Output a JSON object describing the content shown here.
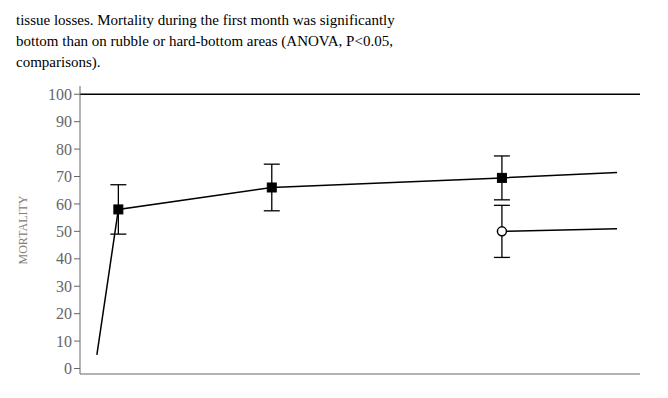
{
  "chart_data": {
    "type": "line",
    "annotations": [
      "tissue losses. Mortality during the first month was significantly",
      "bottom than on rubble or hard-bottom areas (ANOVA, P<0.05,",
      "comparisons)."
    ],
    "ylabel": "MORTALITY",
    "xlim": [
      0.5,
      7.8
    ],
    "ylim": [
      -2,
      103
    ],
    "yticks": [
      0,
      10,
      20,
      30,
      40,
      50,
      60,
      70,
      80,
      90,
      100
    ],
    "tick_labels": "y",
    "series": [
      {
        "type": "line",
        "x": [
          0.5,
          7.8
        ],
        "values": [
          100,
          100
        ],
        "color": "#000000"
      },
      {
        "type": "line",
        "x": [
          0.72,
          1,
          3,
          6,
          7.5
        ],
        "values": [
          5,
          58.0,
          66.0,
          69.5,
          71.5
        ],
        "color": "#000000"
      },
      {
        "type": "line",
        "x": [
          6,
          7.5
        ],
        "values": [
          50.0,
          51.0
        ],
        "color": "#000000"
      },
      {
        "type": "scatter",
        "marker": "square",
        "x": [
          1,
          3,
          6
        ],
        "values": [
          58.0,
          66.0,
          69.5
        ],
        "error_lower": [
          9.0,
          8.5,
          8.0
        ],
        "error_upper": [
          9.0,
          8.5,
          8.0
        ],
        "color": "#000000"
      },
      {
        "type": "scatter",
        "marker": "open_circle",
        "x": [
          6
        ],
        "values": [
          50.0
        ],
        "error_lower": [
          9.5
        ],
        "error_upper": [
          9.5
        ],
        "color": "#000000"
      }
    ]
  }
}
